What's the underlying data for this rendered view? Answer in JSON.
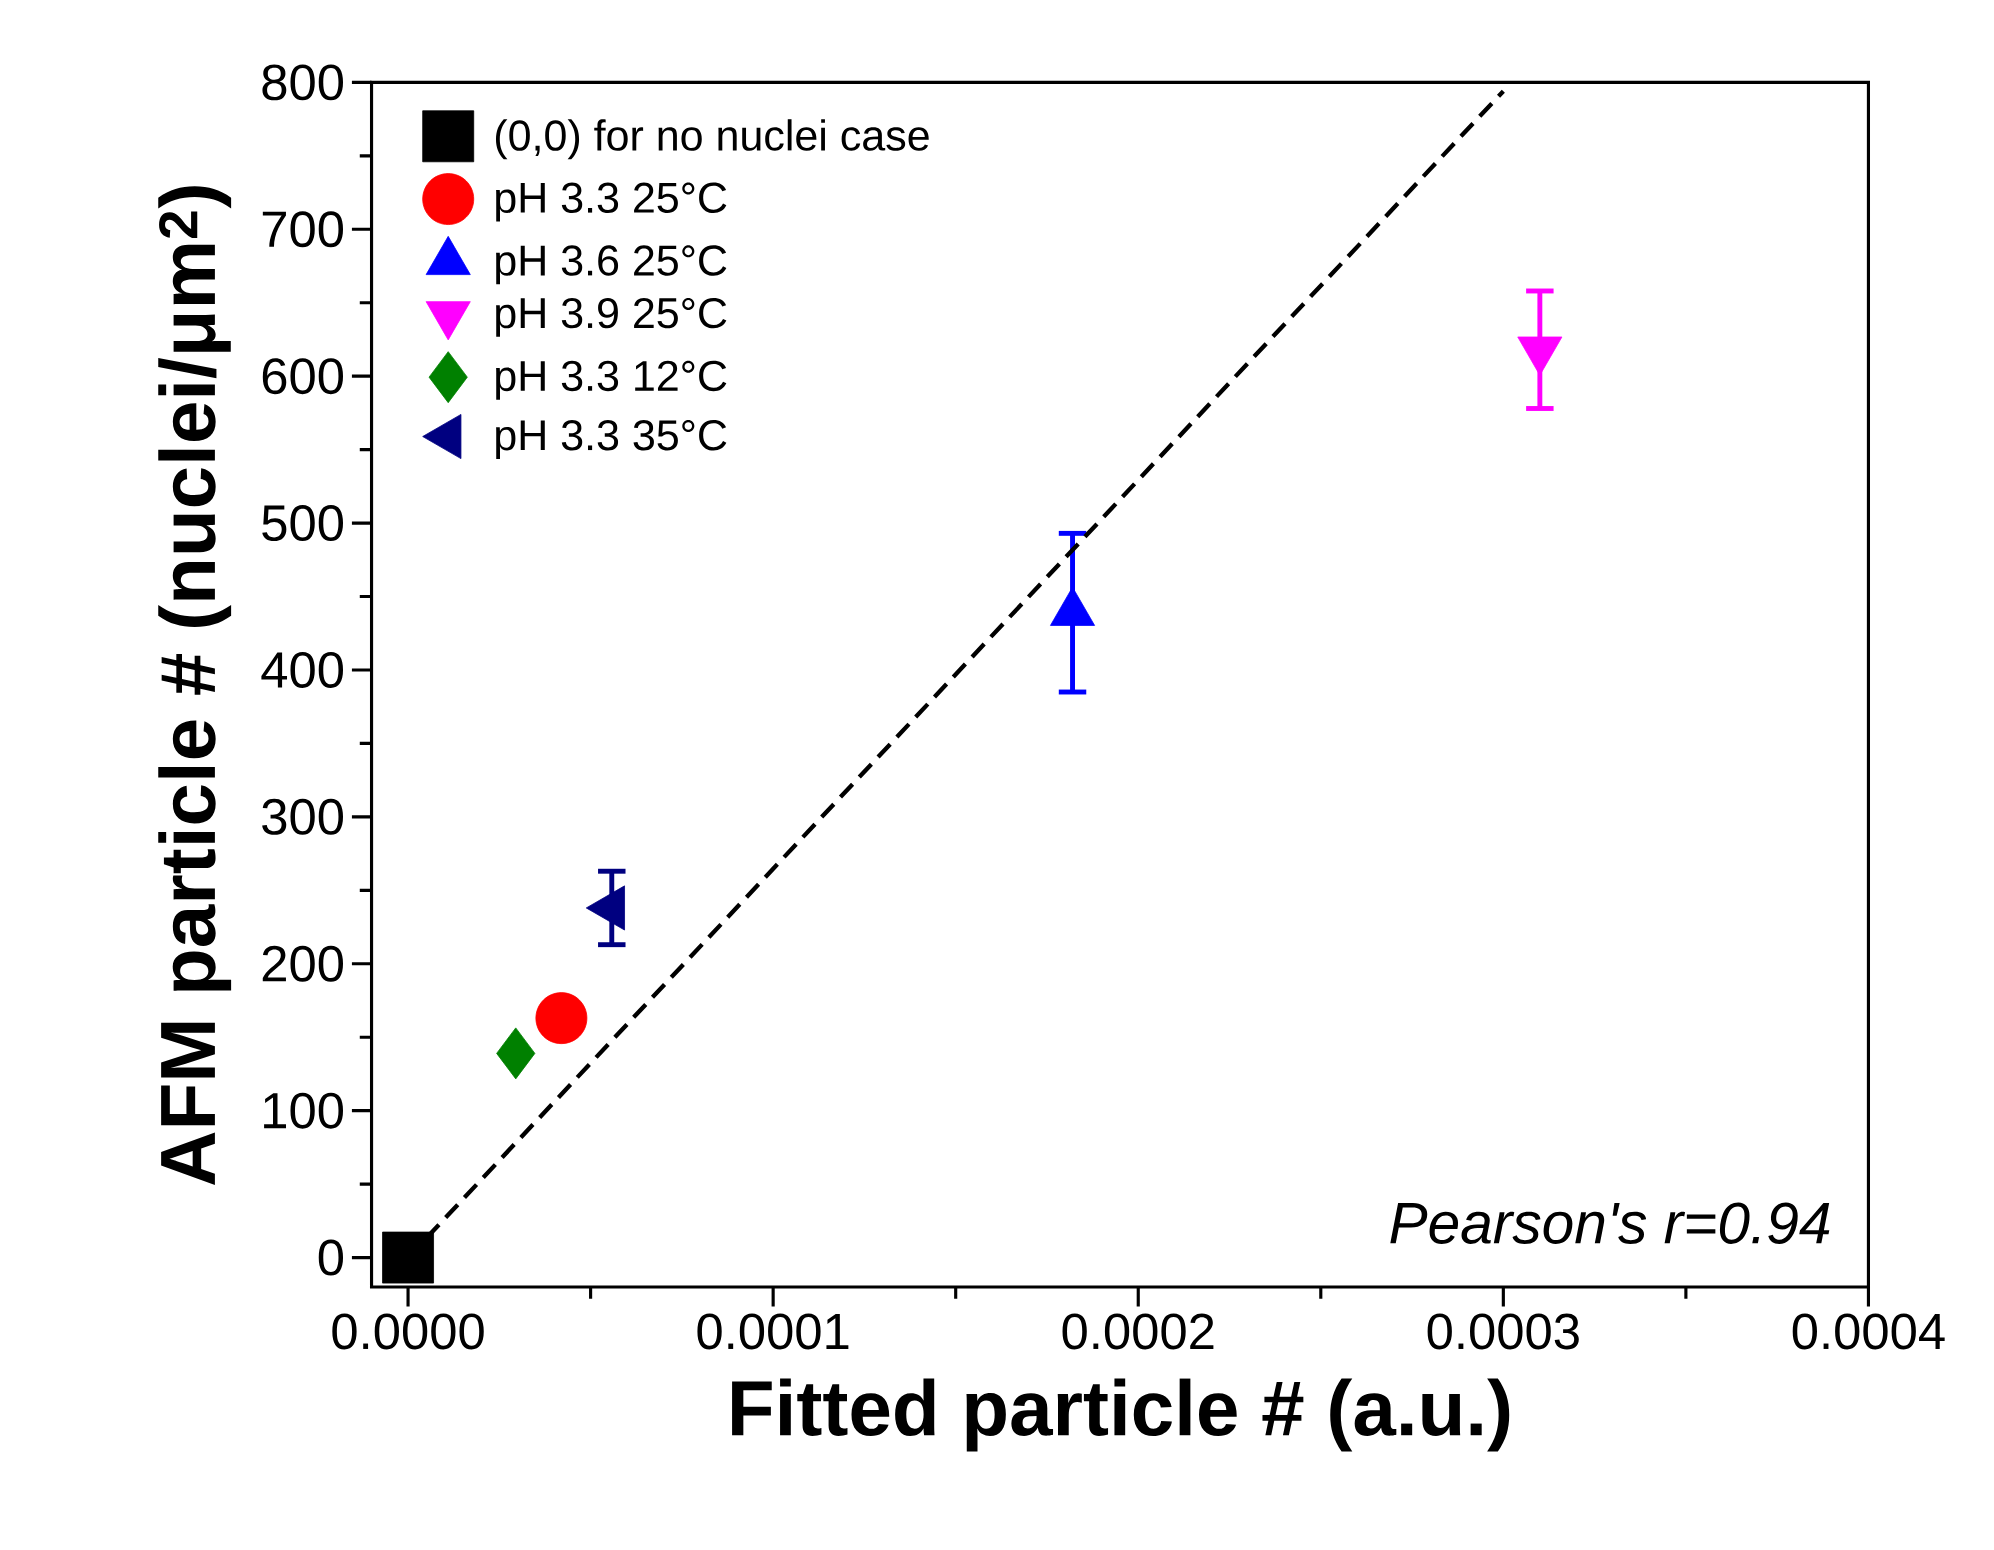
{
  "chart_data": {
    "type": "scatter",
    "xlabel": "Fitted particle # (a.u.)",
    "ylabel": "AFM particle # (nuclei/μm$^{2}$)",
    "annotations": [
      "Pearson's r=0.94"
    ],
    "xlim": [
      -1e-05,
      0.0004
    ],
    "ylim": [
      -20,
      800
    ],
    "xticks": [
      {
        "value": 0,
        "label": "0.0000"
      },
      {
        "value": 0.0001,
        "label": "0.0001"
      },
      {
        "value": 0.0002,
        "label": "0.0002"
      },
      {
        "value": 0.0003,
        "label": "0.0003"
      },
      {
        "value": 0.0004,
        "label": "0.0004"
      }
    ],
    "yticks": [
      0,
      100,
      200,
      300,
      400,
      500,
      600,
      700,
      800
    ],
    "legend": "top left",
    "grid": false,
    "series": [
      {
        "name": "(0,0) for no nuclei case",
        "color": "#000000",
        "marker": "square",
        "x": [
          0
        ],
        "values": [
          0
        ]
      },
      {
        "name": "pH 3.3 25°C",
        "color": "#ff0000",
        "marker": "circle",
        "x": [
          4.2e-05
        ],
        "values": [
          163
        ]
      },
      {
        "name": "pH 3.6 25°C",
        "color": "#0000ff",
        "marker": "triangle",
        "x": [
          0.000182
        ],
        "values": [
          439
        ],
        "errors": [
          54
        ]
      },
      {
        "name": "pH 3.9 25°C",
        "color": "#ff00ff",
        "marker": "triangle-down",
        "x": [
          0.00031
        ],
        "values": [
          618
        ],
        "errors": [
          40
        ]
      },
      {
        "name": "pH 3.3 12°C",
        "color": "#008000",
        "marker": "diamond",
        "x": [
          2.95e-05
        ],
        "values": [
          139
        ]
      },
      {
        "name": "pH 3.3 35°C",
        "color": "#000080",
        "marker": "triangle-left",
        "x": [
          5.58e-05
        ],
        "values": [
          238
        ],
        "errors": [
          25
        ]
      },
      {
        "type": "line",
        "color": "#000000",
        "line_style": "dashed",
        "marker": "none",
        "x": [
          0,
          0.0003
        ],
        "values": [
          0,
          794
        ]
      }
    ]
  }
}
